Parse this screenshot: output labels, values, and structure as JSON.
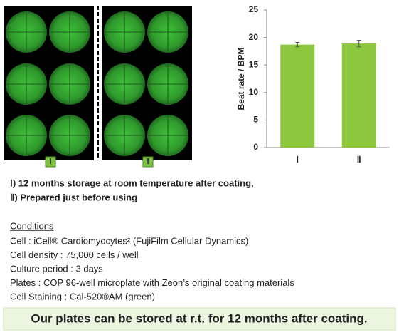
{
  "chart_data": {
    "type": "bar",
    "y_label": "Beat rate / BPM",
    "categories": [
      "Ⅰ",
      "Ⅱ"
    ],
    "values": [
      18.7,
      18.9
    ],
    "errors": [
      0.4,
      0.6
    ],
    "color": "#8dc63f",
    "ylim": [
      0,
      25
    ],
    "yticks": [
      0,
      5,
      10,
      15,
      20,
      25
    ],
    "grid": false
  },
  "images": {
    "labels": [
      "Ⅰ",
      "Ⅱ"
    ]
  },
  "captions": [
    "Ⅰ) 12 months storage at room temperature after coating,",
    "Ⅱ) Prepared just before using"
  ],
  "conditions": {
    "title": "Conditions",
    "lines": [
      "Cell : iCell® Cardiomyocytes² (FujiFilm Cellular Dynamics)",
      "Cell density : 75,000 cells / well",
      "Culture period :  3 days",
      "Plates : COP 96-well microplate with Zeon’s original coating materials",
      "Cell Staining : Cal-520®AM (green)"
    ]
  },
  "banner": "Our plates can be stored at r.t. for 12 months after coating."
}
